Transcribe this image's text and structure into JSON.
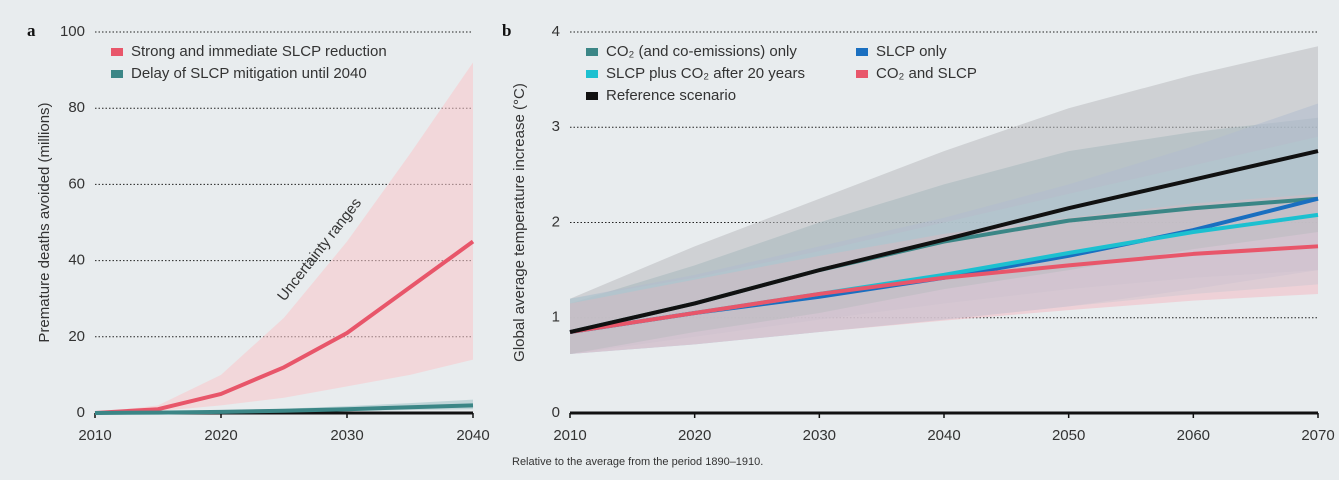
{
  "chart_data": [
    {
      "type": "line",
      "panel_label": "a",
      "ylabel": "Premature deaths avoided (millions)",
      "annotation": "Uncertainty ranges",
      "x": [
        2010,
        2015,
        2020,
        2025,
        2030,
        2035,
        2040
      ],
      "xlim": [
        2010,
        2040
      ],
      "xticks": [
        2010,
        2020,
        2030,
        2040
      ],
      "ylim": [
        0,
        100
      ],
      "yticks": [
        0,
        20,
        40,
        60,
        80,
        100
      ],
      "grid": true,
      "legend": "upper left",
      "series": [
        {
          "name": "Strong and immediate SLCP reduction",
          "color": "#e8566a",
          "band_color": "#f9c6ca",
          "values": [
            0,
            1,
            5,
            12,
            21,
            33,
            45
          ],
          "band_lower": [
            0,
            0.5,
            2,
            4,
            7,
            10,
            14
          ],
          "band_upper": [
            0,
            2,
            10,
            25,
            45,
            68,
            92
          ]
        },
        {
          "name": "Delay of SLCP mitigation until 2040",
          "color": "#3b8686",
          "band_color": "#9fc3c6",
          "values": [
            0,
            0.1,
            0.3,
            0.6,
            1,
            1.5,
            2
          ],
          "band_lower": [
            0,
            0,
            0.1,
            0.3,
            0.5,
            0.8,
            1
          ],
          "band_upper": [
            0,
            0.2,
            0.6,
            1.1,
            1.8,
            2.6,
            3.5
          ]
        }
      ]
    },
    {
      "type": "line",
      "panel_label": "b",
      "ylabel": "Global average temperature increase (°C)",
      "note": "Relative to the average from the period 1890–1910.",
      "x": [
        2010,
        2020,
        2030,
        2040,
        2050,
        2060,
        2070
      ],
      "xlim": [
        2010,
        2070
      ],
      "xticks": [
        2010,
        2020,
        2030,
        2040,
        2050,
        2060,
        2070
      ],
      "ylim": [
        0,
        4
      ],
      "yticks": [
        0,
        1,
        2,
        3,
        4
      ],
      "grid": true,
      "legend": "upper left",
      "series": [
        {
          "name": "CO₂ (and co-emissions) only",
          "color": "#3b8686",
          "band_color": "#8fb4b8",
          "values": [
            0.85,
            1.15,
            1.5,
            1.8,
            2.02,
            2.15,
            2.25
          ],
          "band_lower": [
            0.62,
            0.8,
            0.98,
            1.15,
            1.3,
            1.42,
            1.5
          ],
          "band_upper": [
            1.15,
            1.55,
            2.0,
            2.4,
            2.75,
            2.95,
            3.1
          ]
        },
        {
          "name": "SLCP only",
          "color": "#1a6fc0",
          "band_color": "#a8bde0",
          "values": [
            0.85,
            1.05,
            1.22,
            1.42,
            1.65,
            1.92,
            2.25
          ],
          "band_lower": [
            0.62,
            0.72,
            0.85,
            0.98,
            1.12,
            1.3,
            1.5
          ],
          "band_upper": [
            1.2,
            1.45,
            1.75,
            2.05,
            2.4,
            2.8,
            3.25
          ]
        },
        {
          "name": "SLCP plus CO₂ after 20 years",
          "color": "#1cc0d0",
          "band_color": "#a5d8e0",
          "values": [
            0.85,
            1.05,
            1.25,
            1.45,
            1.68,
            1.9,
            2.08
          ],
          "band_lower": [
            0.62,
            0.72,
            0.85,
            0.98,
            1.12,
            1.25,
            1.35
          ],
          "band_upper": [
            1.2,
            1.42,
            1.7,
            2.0,
            2.3,
            2.6,
            2.9
          ]
        },
        {
          "name": "CO₂ and SLCP",
          "color": "#e8566a",
          "band_color": "#f2bcc4",
          "values": [
            0.85,
            1.05,
            1.25,
            1.42,
            1.55,
            1.67,
            1.75
          ],
          "band_lower": [
            0.62,
            0.72,
            0.85,
            0.97,
            1.08,
            1.18,
            1.25
          ],
          "band_upper": [
            1.15,
            1.4,
            1.65,
            1.88,
            2.05,
            2.2,
            2.3
          ]
        },
        {
          "name": "Reference scenario",
          "color": "#111111",
          "band_color": "#b9bcbf",
          "values": [
            0.85,
            1.15,
            1.5,
            1.82,
            2.15,
            2.45,
            2.75
          ],
          "band_lower": [
            0.62,
            0.85,
            1.05,
            1.3,
            1.5,
            1.72,
            1.9
          ],
          "band_upper": [
            1.2,
            1.75,
            2.25,
            2.75,
            3.2,
            3.55,
            3.85
          ]
        }
      ]
    }
  ]
}
